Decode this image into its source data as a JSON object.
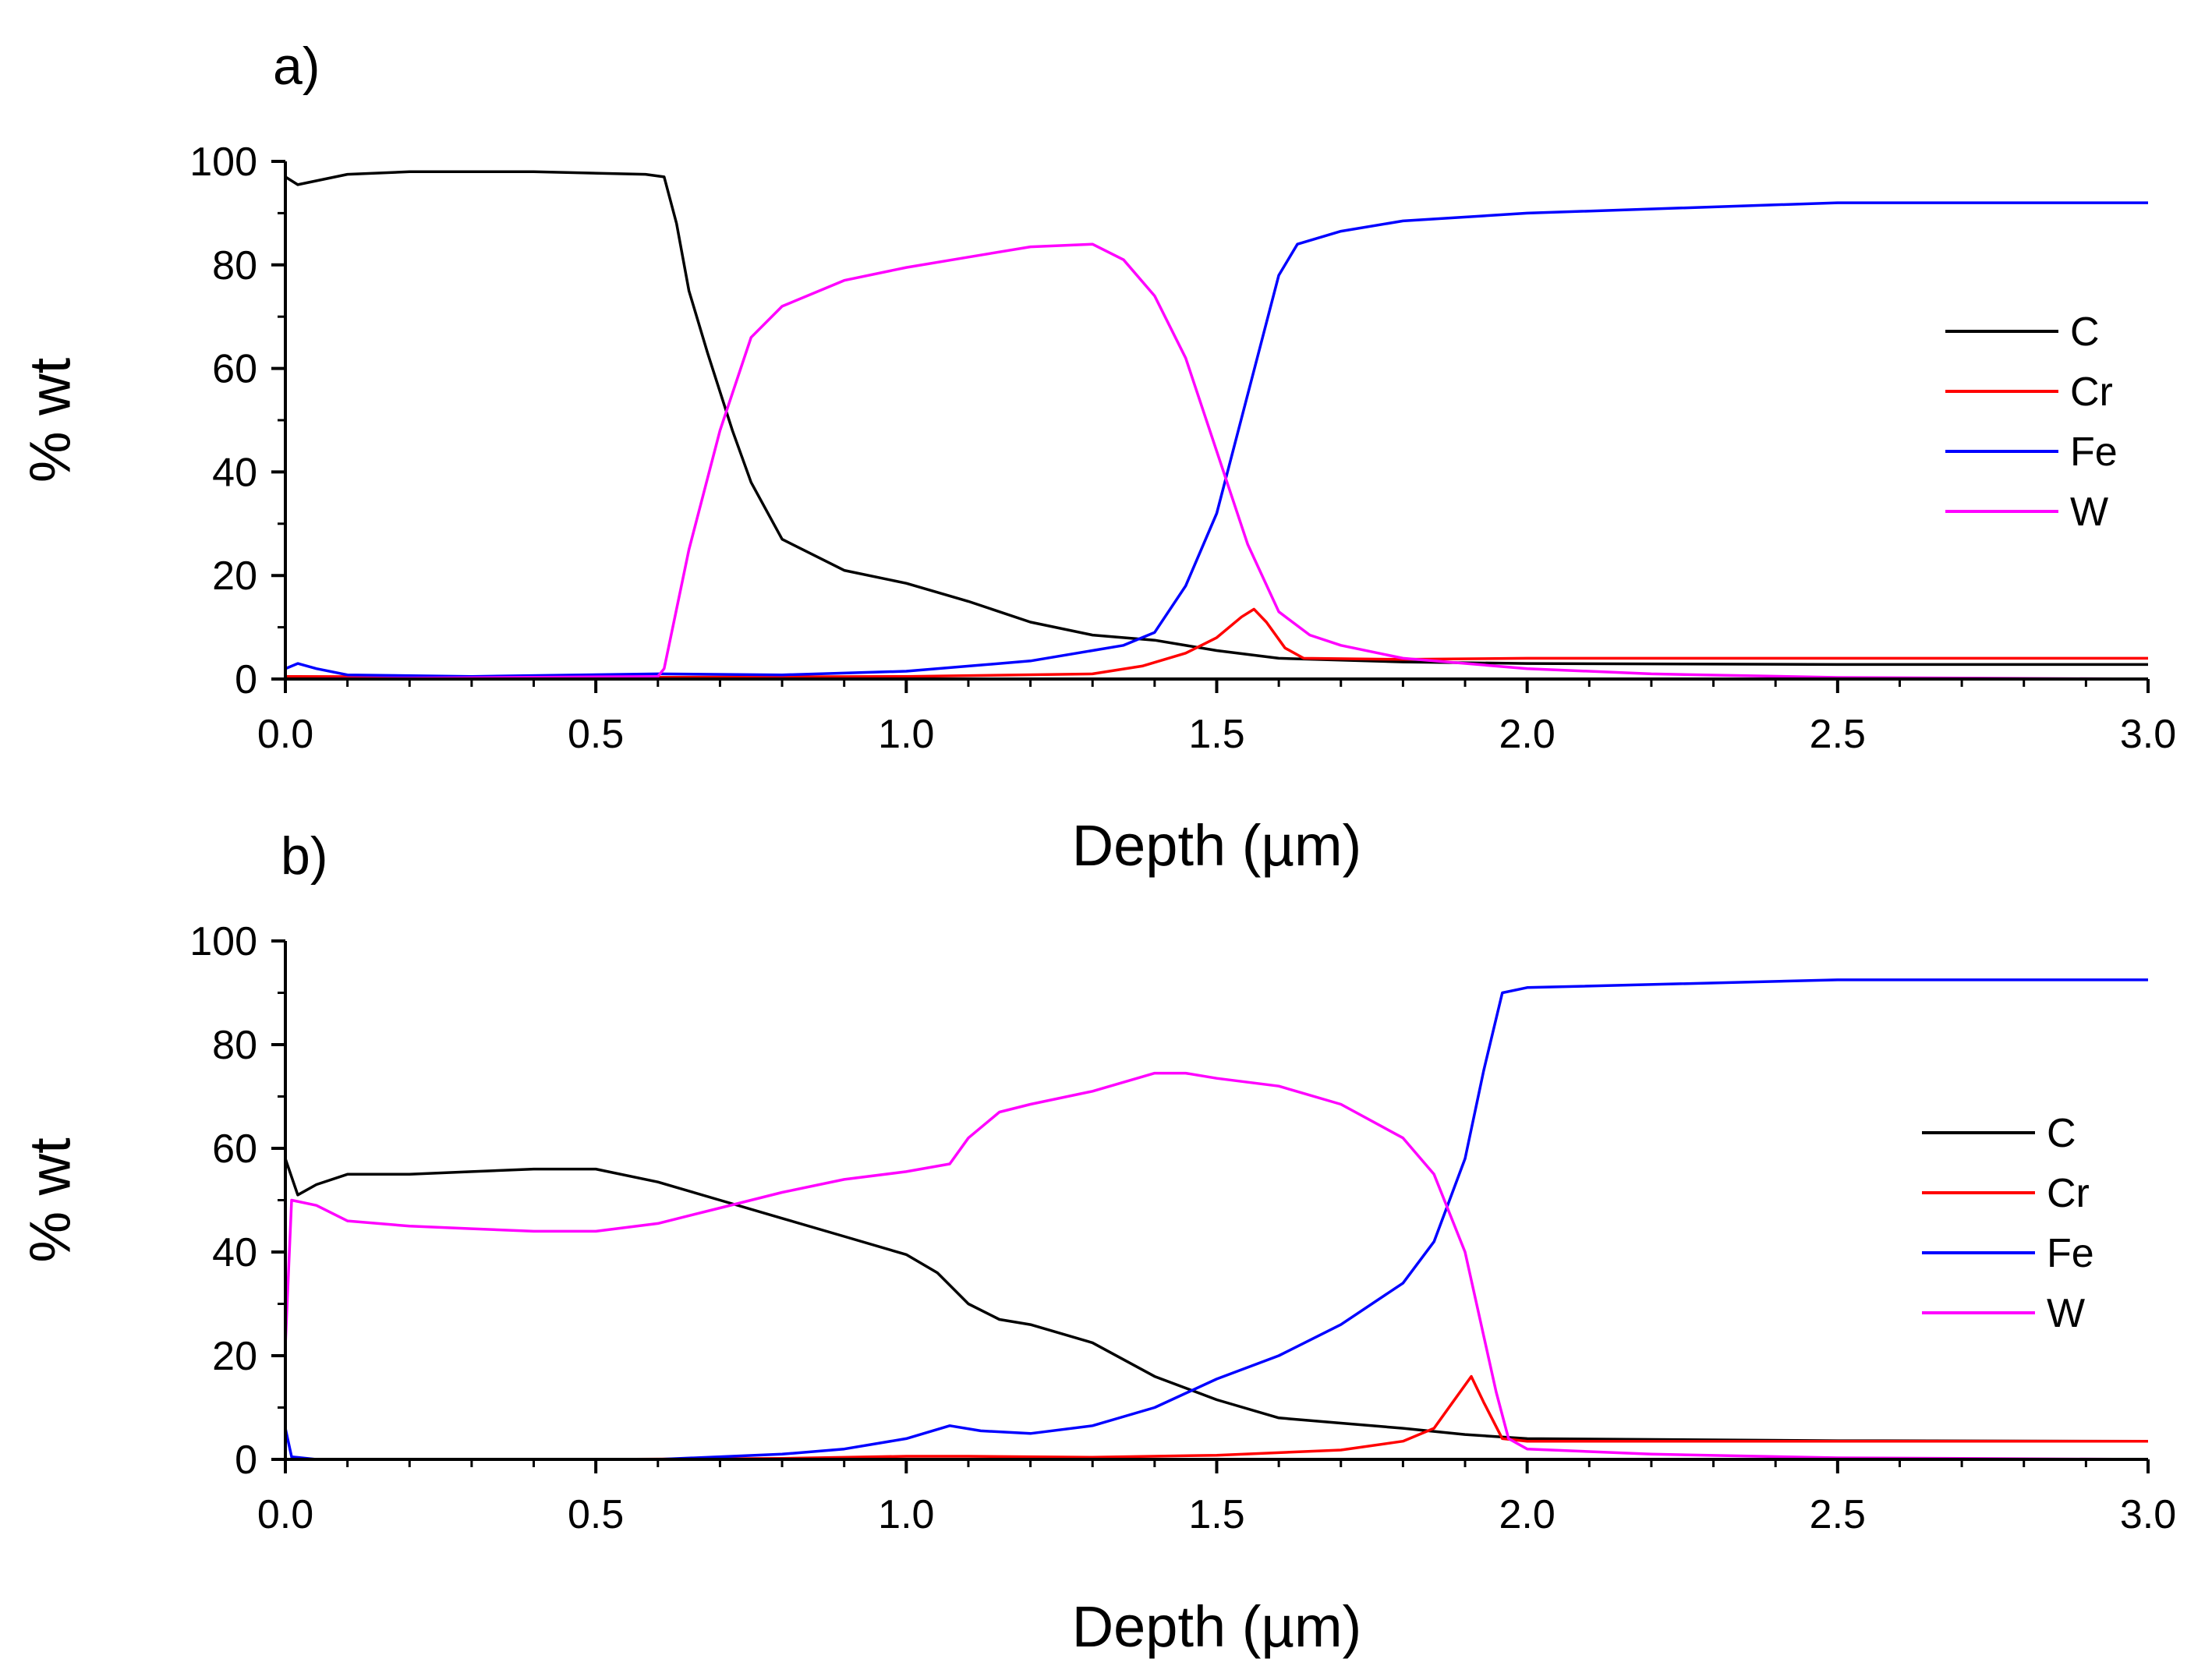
{
  "chart_data": [
    {
      "type": "line",
      "panel_label": "a)",
      "xlabel": "Depth (µm)",
      "ylabel": "% wt",
      "xlim": [
        0,
        3.0
      ],
      "ylim": [
        0,
        100
      ],
      "xticks": [
        "0.0",
        "0.5",
        "1.0",
        "1.5",
        "2.0",
        "2.5",
        "3.0"
      ],
      "yticks": [
        "0",
        "20",
        "40",
        "60",
        "80",
        "100"
      ],
      "legend_position": "center-right",
      "series": [
        {
          "name": "C",
          "color": "#000000",
          "points": [
            [
              0,
              97
            ],
            [
              0.02,
              95.5
            ],
            [
              0.1,
              97.5
            ],
            [
              0.2,
              98
            ],
            [
              0.4,
              98
            ],
            [
              0.58,
              97.5
            ],
            [
              0.61,
              97
            ],
            [
              0.63,
              88
            ],
            [
              0.65,
              75
            ],
            [
              0.68,
              63
            ],
            [
              0.72,
              48
            ],
            [
              0.75,
              38
            ],
            [
              0.8,
              27
            ],
            [
              0.9,
              21
            ],
            [
              1.0,
              18.5
            ],
            [
              1.1,
              15
            ],
            [
              1.2,
              11
            ],
            [
              1.3,
              8.5
            ],
            [
              1.4,
              7.5
            ],
            [
              1.5,
              5.5
            ],
            [
              1.6,
              4
            ],
            [
              1.8,
              3.3
            ],
            [
              2.0,
              3
            ],
            [
              2.5,
              2.8
            ],
            [
              3.0,
              2.8
            ]
          ]
        },
        {
          "name": "Cr",
          "color": "#ff0000",
          "points": [
            [
              0,
              0.5
            ],
            [
              0.5,
              0.3
            ],
            [
              1.0,
              0.5
            ],
            [
              1.3,
              1
            ],
            [
              1.38,
              2.5
            ],
            [
              1.45,
              5
            ],
            [
              1.5,
              8
            ],
            [
              1.54,
              12
            ],
            [
              1.56,
              13.5
            ],
            [
              1.58,
              11
            ],
            [
              1.61,
              6
            ],
            [
              1.64,
              4
            ],
            [
              1.8,
              3.8
            ],
            [
              2.0,
              4
            ],
            [
              2.5,
              4
            ],
            [
              3.0,
              4
            ]
          ]
        },
        {
          "name": "Fe",
          "color": "#0000ff",
          "points": [
            [
              0,
              2
            ],
            [
              0.02,
              3
            ],
            [
              0.05,
              2
            ],
            [
              0.1,
              0.8
            ],
            [
              0.3,
              0.5
            ],
            [
              0.6,
              1
            ],
            [
              0.8,
              0.8
            ],
            [
              1.0,
              1.5
            ],
            [
              1.2,
              3.5
            ],
            [
              1.35,
              6.5
            ],
            [
              1.4,
              9
            ],
            [
              1.45,
              18
            ],
            [
              1.5,
              32
            ],
            [
              1.55,
              55
            ],
            [
              1.6,
              78
            ],
            [
              1.63,
              84
            ],
            [
              1.7,
              86.5
            ],
            [
              1.8,
              88.5
            ],
            [
              2.0,
              90
            ],
            [
              2.5,
              92
            ],
            [
              3.0,
              92
            ]
          ]
        },
        {
          "name": "W",
          "color": "#ff00ff",
          "points": [
            [
              0,
              0
            ],
            [
              0.6,
              0.5
            ],
            [
              0.61,
              2
            ],
            [
              0.65,
              25
            ],
            [
              0.7,
              48
            ],
            [
              0.75,
              66
            ],
            [
              0.8,
              72
            ],
            [
              0.9,
              77
            ],
            [
              1.0,
              79.5
            ],
            [
              1.1,
              81.5
            ],
            [
              1.2,
              83.5
            ],
            [
              1.3,
              84
            ],
            [
              1.35,
              81
            ],
            [
              1.4,
              74
            ],
            [
              1.45,
              62
            ],
            [
              1.5,
              44
            ],
            [
              1.55,
              26
            ],
            [
              1.6,
              13
            ],
            [
              1.65,
              8.5
            ],
            [
              1.7,
              6.5
            ],
            [
              1.8,
              4
            ],
            [
              2.0,
              2
            ],
            [
              2.2,
              1
            ],
            [
              2.5,
              0.3
            ],
            [
              3.0,
              0
            ]
          ]
        }
      ]
    },
    {
      "type": "line",
      "panel_label": "b)",
      "xlabel": "Depth (µm)",
      "ylabel": "% wt",
      "xlim": [
        0,
        3.0
      ],
      "ylim": [
        0,
        100
      ],
      "xticks": [
        "0.0",
        "0.5",
        "1.0",
        "1.5",
        "2.0",
        "2.5",
        "3.0"
      ],
      "yticks": [
        "0",
        "20",
        "40",
        "60",
        "80",
        "100"
      ],
      "legend_position": "center-right",
      "series": [
        {
          "name": "C",
          "color": "#000000",
          "points": [
            [
              0,
              58
            ],
            [
              0.02,
              51
            ],
            [
              0.05,
              53
            ],
            [
              0.1,
              55
            ],
            [
              0.2,
              55
            ],
            [
              0.3,
              55.5
            ],
            [
              0.4,
              56
            ],
            [
              0.5,
              56
            ],
            [
              0.6,
              53.5
            ],
            [
              0.7,
              50
            ],
            [
              0.8,
              46.5
            ],
            [
              0.9,
              43
            ],
            [
              1.0,
              39.5
            ],
            [
              1.05,
              36
            ],
            [
              1.1,
              30
            ],
            [
              1.15,
              27
            ],
            [
              1.2,
              26
            ],
            [
              1.3,
              22.5
            ],
            [
              1.4,
              16
            ],
            [
              1.5,
              11.5
            ],
            [
              1.6,
              8
            ],
            [
              1.7,
              7
            ],
            [
              1.8,
              6
            ],
            [
              1.9,
              4.8
            ],
            [
              2.0,
              4
            ],
            [
              2.5,
              3.6
            ],
            [
              3.0,
              3.5
            ]
          ]
        },
        {
          "name": "Cr",
          "color": "#ff0000",
          "points": [
            [
              0,
              0
            ],
            [
              0.5,
              0
            ],
            [
              0.8,
              0.2
            ],
            [
              1.0,
              0.6
            ],
            [
              1.1,
              0.6
            ],
            [
              1.3,
              0.4
            ],
            [
              1.5,
              0.8
            ],
            [
              1.7,
              1.8
            ],
            [
              1.8,
              3.5
            ],
            [
              1.85,
              6
            ],
            [
              1.88,
              11
            ],
            [
              1.91,
              16
            ],
            [
              1.93,
              11
            ],
            [
              1.96,
              4
            ],
            [
              2.0,
              3.5
            ],
            [
              2.5,
              3.5
            ],
            [
              3.0,
              3.5
            ]
          ]
        },
        {
          "name": "Fe",
          "color": "#0000ff",
          "points": [
            [
              0,
              6
            ],
            [
              0.01,
              0.5
            ],
            [
              0.05,
              0
            ],
            [
              0.6,
              0
            ],
            [
              0.8,
              1
            ],
            [
              0.9,
              2
            ],
            [
              1.0,
              4
            ],
            [
              1.07,
              6.5
            ],
            [
              1.12,
              5.5
            ],
            [
              1.2,
              5
            ],
            [
              1.3,
              6.5
            ],
            [
              1.4,
              10
            ],
            [
              1.5,
              15.5
            ],
            [
              1.6,
              20
            ],
            [
              1.7,
              26
            ],
            [
              1.8,
              34
            ],
            [
              1.85,
              42
            ],
            [
              1.9,
              58
            ],
            [
              1.93,
              75
            ],
            [
              1.96,
              90
            ],
            [
              2.0,
              91
            ],
            [
              2.5,
              92.5
            ],
            [
              3.0,
              92.5
            ]
          ]
        },
        {
          "name": "W",
          "color": "#ff00ff",
          "points": [
            [
              0,
              22
            ],
            [
              0.01,
              50
            ],
            [
              0.05,
              49
            ],
            [
              0.1,
              46
            ],
            [
              0.2,
              45
            ],
            [
              0.3,
              44.5
            ],
            [
              0.4,
              44
            ],
            [
              0.5,
              44
            ],
            [
              0.6,
              45.5
            ],
            [
              0.7,
              48.5
            ],
            [
              0.8,
              51.5
            ],
            [
              0.9,
              54
            ],
            [
              1.0,
              55.5
            ],
            [
              1.07,
              57
            ],
            [
              1.1,
              62
            ],
            [
              1.15,
              67
            ],
            [
              1.2,
              68.5
            ],
            [
              1.3,
              71
            ],
            [
              1.4,
              74.5
            ],
            [
              1.45,
              74.5
            ],
            [
              1.5,
              73.5
            ],
            [
              1.6,
              72
            ],
            [
              1.7,
              68.5
            ],
            [
              1.8,
              62
            ],
            [
              1.85,
              55
            ],
            [
              1.9,
              40
            ],
            [
              1.95,
              13
            ],
            [
              1.97,
              4
            ],
            [
              2.0,
              2
            ],
            [
              2.2,
              1
            ],
            [
              2.5,
              0.3
            ],
            [
              3.0,
              0
            ]
          ]
        }
      ]
    }
  ]
}
